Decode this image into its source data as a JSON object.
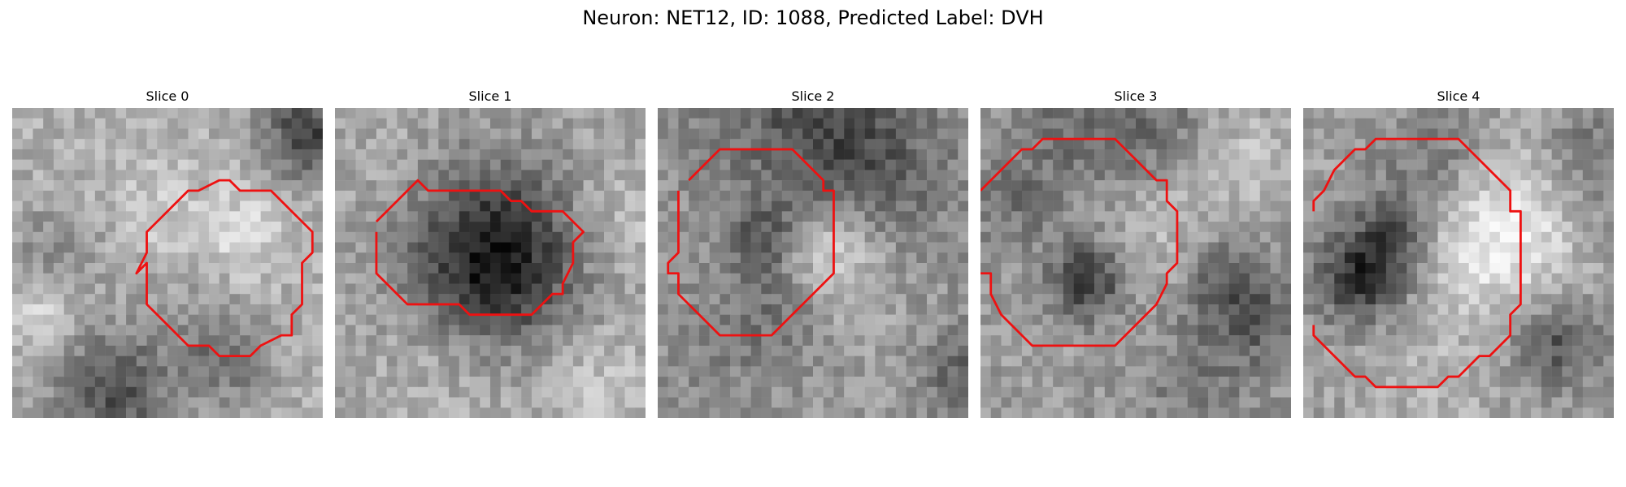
{
  "figure": {
    "title": "Neuron: NET12, ID: 1088, Predicted Label: DVH"
  },
  "panels": [
    {
      "title": "Slice 0",
      "seed": 11,
      "features": "slice0"
    },
    {
      "title": "Slice 1",
      "seed": 23,
      "features": "slice1"
    },
    {
      "title": "Slice 2",
      "seed": 37,
      "features": "slice2"
    },
    {
      "title": "Slice 3",
      "seed": 41,
      "features": "slice3"
    },
    {
      "title": "Slice 4",
      "seed": 59,
      "features": "slice4"
    }
  ],
  "contour_color": "#ee1111",
  "colormap": "gray"
}
